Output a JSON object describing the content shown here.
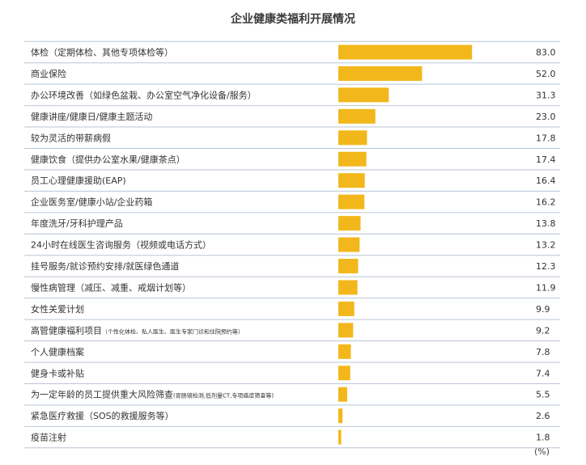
{
  "chart_data": {
    "type": "bar",
    "orientation": "horizontal",
    "title": "企业健康类福利开展情况",
    "unit": "(%)",
    "bar_color": "#F2B71B",
    "divider_color": "#B9C6D6",
    "xlim": [
      0,
      100
    ],
    "categories": [
      {
        "label": "体检（定期体检、其他专项体检等）",
        "note": "",
        "value": 83.0,
        "value_label": "83.0"
      },
      {
        "label": "商业保险",
        "note": "",
        "value": 52.0,
        "value_label": "52.0"
      },
      {
        "label": "办公环境改善（如绿色盆栽、办公室空气净化设备/服务）",
        "note": "",
        "value": 31.3,
        "value_label": "31.3"
      },
      {
        "label": "健康讲座/健康日/健康主题活动",
        "note": "",
        "value": 23.0,
        "value_label": "23.0"
      },
      {
        "label": "较为灵活的带薪病假",
        "note": "",
        "value": 17.8,
        "value_label": "17.8"
      },
      {
        "label": "健康饮食（提供办公室水果/健康茶点）",
        "note": "",
        "value": 17.4,
        "value_label": "17.4"
      },
      {
        "label": "员工心理健康援助(EAP)",
        "note": "",
        "value": 16.4,
        "value_label": "16.4"
      },
      {
        "label": "企业医务室/健康小站/企业药箱",
        "note": "",
        "value": 16.2,
        "value_label": "16.2"
      },
      {
        "label": "年度洗牙/牙科护理产品",
        "note": "",
        "value": 13.8,
        "value_label": "13.8"
      },
      {
        "label": "24小时在线医生咨询服务（视频或电话方式）",
        "note": "",
        "value": 13.2,
        "value_label": "13.2"
      },
      {
        "label": "挂号服务/就诊预约安排/就医绿色通道",
        "note": "",
        "value": 12.3,
        "value_label": "12.3"
      },
      {
        "label": "慢性病管理（减压、减重、戒烟计划等）",
        "note": "",
        "value": 11.9,
        "value_label": "11.9"
      },
      {
        "label": "女性关爱计划",
        "note": "",
        "value": 9.9,
        "value_label": "9.9"
      },
      {
        "label": "高管健康福利项目",
        "note": "（个性化体检、私人医生、医生专家门诊和住院预约等）",
        "value": 9.2,
        "value_label": "9.2"
      },
      {
        "label": "个人健康档案",
        "note": "",
        "value": 7.8,
        "value_label": "7.8"
      },
      {
        "label": "健身卡或补贴",
        "note": "",
        "value": 7.4,
        "value_label": "7.4"
      },
      {
        "label": "为一定年龄的员工提供重大风险筛查",
        "note": "(胃肠镜检测,低剂量CT,专项癌症筛查等)",
        "value": 5.5,
        "value_label": "5.5"
      },
      {
        "label": "紧急医疗救援（SOS的救援服务等）",
        "note": "",
        "value": 2.6,
        "value_label": "2.6"
      },
      {
        "label": "疫苗注射",
        "note": "",
        "value": 1.8,
        "value_label": "1.8"
      }
    ]
  }
}
